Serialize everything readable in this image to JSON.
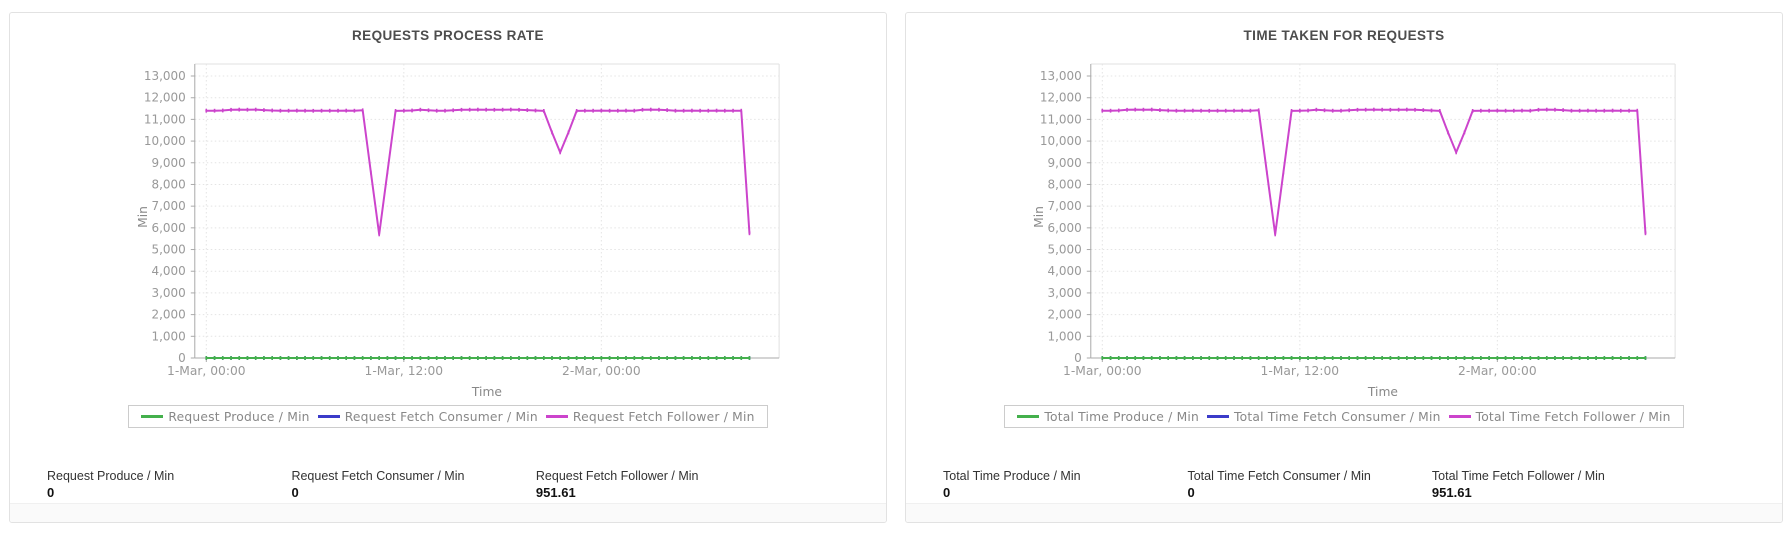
{
  "page": {
    "background": "#ffffff",
    "panel_border": "#e2e2e2"
  },
  "panels": [
    {
      "title": "REQUESTS PROCESS RATE",
      "stats": [
        {
          "label": "Request Produce / Min",
          "value": "0"
        },
        {
          "label": "Request Fetch Consumer / Min",
          "value": "0"
        },
        {
          "label": "Request Fetch Follower / Min",
          "value": "951.61"
        }
      ]
    },
    {
      "title": "TIME TAKEN FOR REQUESTS",
      "stats": [
        {
          "label": "Total Time Produce / Min",
          "value": "0"
        },
        {
          "label": "Total Time Fetch Consumer / Min",
          "value": "0"
        },
        {
          "label": "Total Time Fetch Follower / Min",
          "value": "951.61"
        }
      ]
    }
  ],
  "chart_data": [
    {
      "type": "line",
      "title": "REQUESTS PROCESS RATE",
      "xlabel": "Time",
      "ylabel": "Min",
      "ylim": [
        0,
        13000
      ],
      "y_tick_step": 1000,
      "grid": "dotted",
      "legend_position": "bottom",
      "x_unit": "hours since 1-Mar 00:00",
      "x_range_drawn": [
        -0.7,
        34.8
      ],
      "x_ticks": [
        {
          "t": 0,
          "label": "1-Mar, 00:00"
        },
        {
          "t": 12,
          "label": "1-Mar, 12:00"
        },
        {
          "t": 24,
          "label": "2-Mar, 00:00"
        }
      ],
      "series": [
        {
          "name": "Request Produce / Min",
          "color": "#44b04c",
          "constant_value": 0,
          "t_start": 0,
          "t_end": 33,
          "t_step": 0.5
        },
        {
          "name": "Request Fetch Consumer / Min",
          "color": "#3b3bc9",
          "constant_value": 0,
          "t_start": 0,
          "t_end": 33,
          "t_step": 0.5
        },
        {
          "name": "Request Fetch Follower / Min",
          "color": "#cc44cc",
          "x_start": 0,
          "x_step": 0.5,
          "values": [
            11400,
            11400,
            11410,
            11440,
            11450,
            11445,
            11450,
            11430,
            11410,
            11400,
            11400,
            11405,
            11400,
            11395,
            11400,
            11400,
            11400,
            11405,
            11400,
            11420,
            8550,
            5700,
            8550,
            11390,
            11400,
            11410,
            11445,
            11420,
            11400,
            11400,
            11420,
            11440,
            11445,
            11450,
            11445,
            11440,
            11445,
            11450,
            11440,
            11430,
            11410,
            11390,
            10400,
            9480,
            10400,
            11390,
            11400,
            11400,
            11405,
            11400,
            11400,
            11405,
            11400,
            11440,
            11450,
            11445,
            11430,
            11400,
            11400,
            11405,
            11400,
            11400,
            11405,
            11400,
            11400,
            11400,
            5750
          ]
        }
      ]
    },
    {
      "type": "line",
      "title": "TIME TAKEN FOR REQUESTS",
      "xlabel": "Time",
      "ylabel": "Min",
      "ylim": [
        0,
        13000
      ],
      "y_tick_step": 1000,
      "grid": "dotted",
      "legend_position": "bottom",
      "x_unit": "hours since 1-Mar 00:00",
      "x_range_drawn": [
        -0.7,
        34.8
      ],
      "x_ticks": [
        {
          "t": 0,
          "label": "1-Mar, 00:00"
        },
        {
          "t": 12,
          "label": "1-Mar, 12:00"
        },
        {
          "t": 24,
          "label": "2-Mar, 00:00"
        }
      ],
      "series": [
        {
          "name": "Total Time Produce / Min",
          "color": "#44b04c",
          "constant_value": 0,
          "t_start": 0,
          "t_end": 33,
          "t_step": 0.5
        },
        {
          "name": "Total Time Fetch Consumer / Min",
          "color": "#3b3bc9",
          "constant_value": 0,
          "t_start": 0,
          "t_end": 33,
          "t_step": 0.5
        },
        {
          "name": "Total Time Fetch Follower / Min",
          "color": "#cc44cc",
          "x_start": 0,
          "x_step": 0.5,
          "values": [
            11400,
            11400,
            11410,
            11440,
            11450,
            11445,
            11450,
            11430,
            11410,
            11400,
            11400,
            11405,
            11400,
            11395,
            11400,
            11400,
            11400,
            11405,
            11400,
            11420,
            8550,
            5700,
            8550,
            11390,
            11400,
            11410,
            11445,
            11420,
            11400,
            11400,
            11420,
            11440,
            11445,
            11450,
            11445,
            11440,
            11445,
            11450,
            11440,
            11430,
            11410,
            11390,
            10400,
            9480,
            10400,
            11390,
            11400,
            11400,
            11405,
            11400,
            11400,
            11405,
            11400,
            11440,
            11450,
            11445,
            11430,
            11400,
            11400,
            11405,
            11400,
            11400,
            11405,
            11400,
            11400,
            11400,
            5750
          ]
        }
      ]
    }
  ]
}
